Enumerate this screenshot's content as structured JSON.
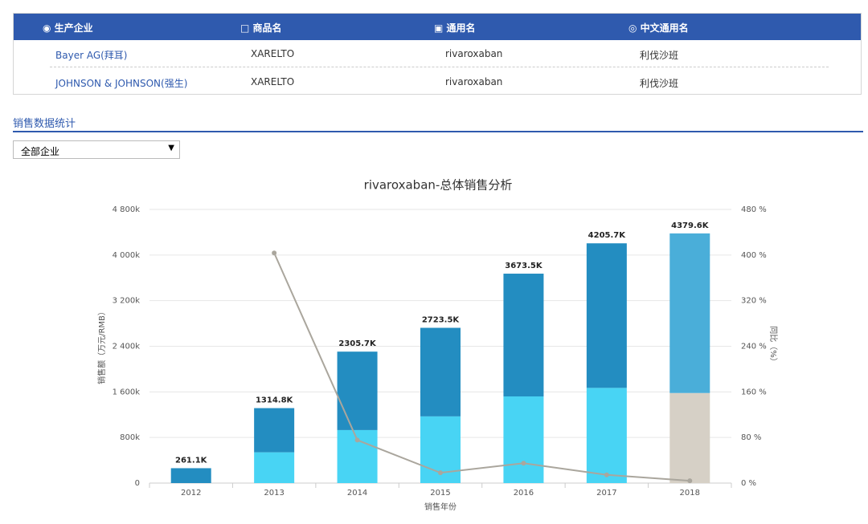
{
  "table": {
    "headers": [
      "生产企业",
      "商品名",
      "通用名",
      "中文通用名"
    ],
    "rows": [
      [
        "Bayer AG(拜耳)",
        "XARELTO",
        "rivaroxaban",
        "利伐沙班"
      ],
      [
        "JOHNSON & JOHNSON(强生)",
        "XARELTO",
        "rivaroxaban",
        "利伐沙班"
      ]
    ]
  },
  "section_title": "销售数据统计",
  "select": "全部企业",
  "chart_data": {
    "type": "bar",
    "stacked": true,
    "title": "rivaroxaban-总体销售分析",
    "x_label": "销售年份",
    "y_label": "销售额（万元/RMB）",
    "y2_label": "同比（%）",
    "categories": [
      "2012",
      "2013",
      "2014",
      "2015",
      "2016",
      "2017",
      "2018"
    ],
    "series": [
      {
        "color": "#48d4f4",
        "colors": [
          "#48d4f4",
          "#48d4f4",
          "#48d4f4",
          "#48d4f4",
          "#48d4f4",
          "#48d4f4",
          "#d6d0c6"
        ],
        "values": [
          null,
          540,
          930,
          1170,
          1520,
          1670,
          1580
        ]
      },
      {
        "color": "#238dc1",
        "colors": [
          "#238dc1",
          "#238dc1",
          "#238dc1",
          "#238dc1",
          "#238dc1",
          "#238dc1",
          "#4aaed9"
        ],
        "values": [
          261.1,
          774.8,
          1375.7,
          1553.5,
          2153.5,
          2535.7,
          2799.6
        ]
      },
      {
        "type": "line",
        "axis": "y2",
        "color": "#aaa69d",
        "values": [
          null,
          403.6,
          75.4,
          18.1,
          34.9,
          14.5,
          4.1
        ]
      }
    ],
    "totals": {
      "values": [
        261.1,
        1314.8,
        2305.7,
        2723.5,
        3673.5,
        4205.7,
        4379.6
      ],
      "value_labels": [
        "261.1K",
        "1314.8K",
        "2305.7K",
        "2723.5K",
        "3673.5K",
        "4205.7K",
        "4379.6K"
      ]
    },
    "ylim": [
      0,
      4800
    ],
    "yticks": [
      0,
      {
        "value": 800,
        "label": "800k"
      },
      {
        "value": 1600,
        "label": "1 600k"
      },
      {
        "value": 2400,
        "label": "2 400k"
      },
      {
        "value": 3200,
        "label": "3 200k"
      },
      {
        "value": 4000,
        "label": "4 000k"
      },
      {
        "value": 4800,
        "label": "4 800k"
      }
    ],
    "y2lim": [
      0,
      480
    ],
    "y2ticks": [
      {
        "value": 0,
        "label": "0 %"
      },
      {
        "value": 80,
        "label": "80 %"
      },
      {
        "value": 160,
        "label": "160 %"
      },
      {
        "value": 240,
        "label": "240 %"
      },
      {
        "value": 320,
        "label": "320 %"
      },
      {
        "value": 400,
        "label": "400 %"
      },
      {
        "value": 480,
        "label": "480 %"
      }
    ],
    "grid": true
  }
}
